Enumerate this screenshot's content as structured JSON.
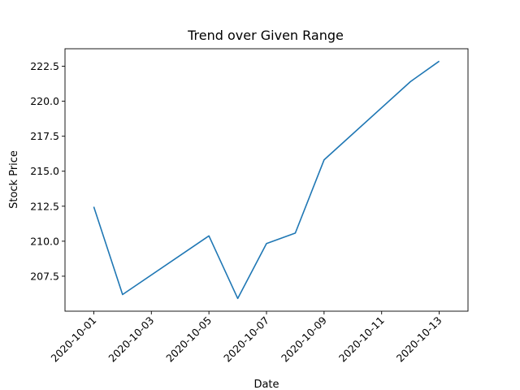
{
  "chart_data": {
    "type": "line",
    "title": "Trend over Given Range",
    "xlabel": "Date",
    "ylabel": "Stock Price",
    "x": [
      "2020-10-01",
      "2020-10-02",
      "2020-10-05",
      "2020-10-06",
      "2020-10-07",
      "2020-10-08",
      "2020-10-09",
      "2020-10-12",
      "2020-10-13"
    ],
    "series": [
      {
        "values": [
          212.46,
          206.19,
          210.38,
          205.91,
          209.83,
          210.58,
          215.81,
          221.4,
          222.86
        ],
        "color": "#1f77b4"
      }
    ],
    "xlim": [
      "2020-09-30",
      "2020-10-14"
    ],
    "ylim": [
      205.0,
      223.75
    ],
    "x_ticks": [
      "2020-10-01",
      "2020-10-03",
      "2020-10-05",
      "2020-10-07",
      "2020-10-09",
      "2020-10-11",
      "2020-10-13"
    ],
    "y_ticks": [
      "207.5",
      "210.0",
      "212.5",
      "215.0",
      "217.5",
      "220.0",
      "222.5"
    ],
    "grid": false,
    "legend": false
  }
}
